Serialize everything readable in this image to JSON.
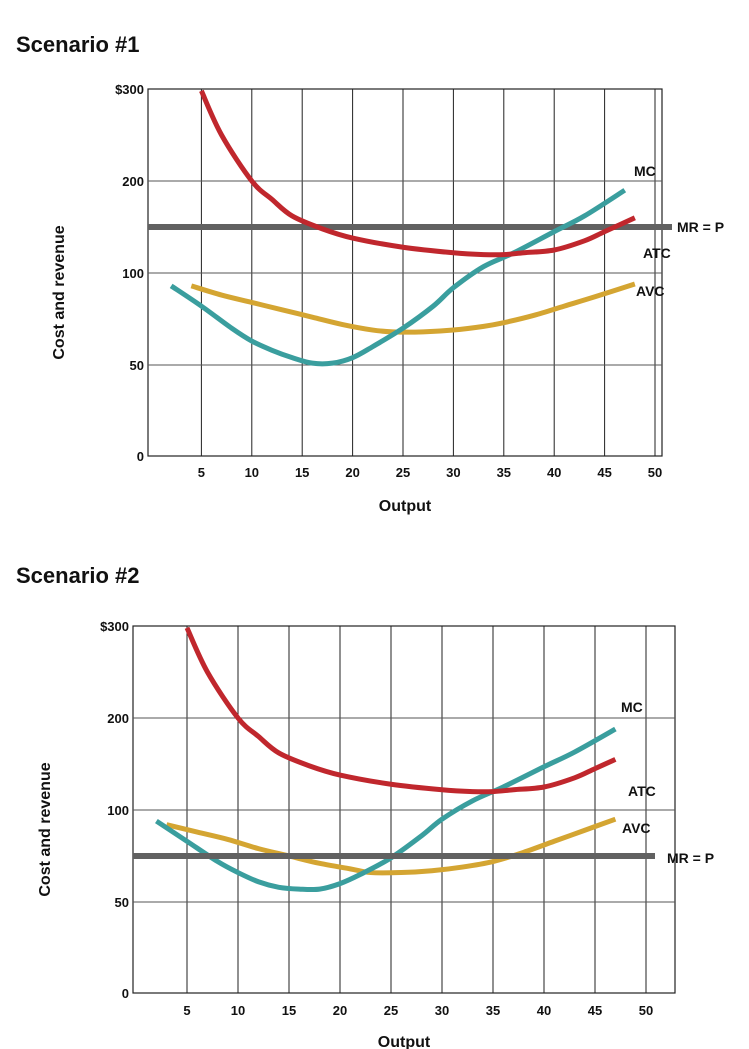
{
  "chart_data": [
    {
      "type": "line",
      "title": "Scenario #1",
      "xlabel": "Output",
      "ylabel": "Cost and revenue",
      "xlim": [
        0,
        52
      ],
      "ylim": [
        0,
        300
      ],
      "x_ticks": [
        5,
        10,
        15,
        20,
        25,
        30,
        35,
        40,
        45,
        50
      ],
      "y_ticks": [
        0,
        50,
        100,
        200,
        300
      ],
      "y_tick_labels": [
        "0",
        "50",
        "100",
        "200",
        "$300"
      ],
      "series": [
        {
          "name": "ATC",
          "color": "#c0272d",
          "x": [
            5,
            7,
            10,
            12,
            14,
            17,
            20,
            25,
            30,
            33,
            35,
            37,
            40,
            43,
            45,
            48
          ],
          "y": [
            298,
            250,
            200,
            180,
            162,
            148,
            138,
            128,
            122,
            120,
            120,
            122,
            125,
            135,
            145,
            160
          ]
        },
        {
          "name": "MC",
          "color": "#3a9e9e",
          "x": [
            2,
            5,
            8,
            10,
            12,
            14,
            16,
            18,
            20,
            22,
            25,
            28,
            30,
            33,
            36,
            40,
            43,
            47
          ],
          "y": [
            93,
            82,
            70,
            63,
            58,
            54,
            51,
            51,
            54,
            60,
            70,
            82,
            92,
            107,
            122,
            145,
            162,
            190
          ]
        },
        {
          "name": "AVC",
          "color": "#d4a532",
          "x": [
            4,
            7,
            10,
            13,
            16,
            19,
            22,
            24,
            27,
            30,
            33,
            35,
            38,
            41,
            44,
            48
          ],
          "y": [
            93,
            88,
            84,
            80,
            76,
            72,
            69,
            68,
            68,
            69,
            71,
            73,
            77,
            82,
            87,
            94
          ]
        }
      ],
      "mr_line": {
        "label": "MR = P",
        "value": 150,
        "color": "#616161"
      }
    },
    {
      "type": "line",
      "title": "Scenario #2",
      "xlabel": "Output",
      "ylabel": "Cost and revenue",
      "xlim": [
        0,
        52
      ],
      "ylim": [
        0,
        300
      ],
      "x_ticks": [
        5,
        10,
        15,
        20,
        25,
        30,
        35,
        40,
        45,
        50
      ],
      "y_ticks": [
        0,
        50,
        100,
        200,
        300
      ],
      "y_tick_labels": [
        "0",
        "50",
        "100",
        "200",
        "$300"
      ],
      "series": [
        {
          "name": "ATC",
          "color": "#c0272d",
          "x": [
            5,
            7,
            10,
            12,
            14,
            17,
            20,
            25,
            30,
            33,
            35,
            37,
            40,
            43,
            45,
            47
          ],
          "y": [
            298,
            250,
            200,
            180,
            162,
            148,
            138,
            128,
            122,
            120,
            120,
            122,
            125,
            135,
            145,
            155
          ]
        },
        {
          "name": "MC",
          "color": "#3a9e9e",
          "x": [
            2,
            5,
            8,
            10,
            12,
            14,
            16,
            18,
            20,
            22,
            25,
            28,
            30,
            33,
            36,
            40,
            43,
            47
          ],
          "y": [
            94,
            83,
            72,
            66,
            61,
            58,
            57,
            57,
            60,
            65,
            74,
            86,
            95,
            110,
            125,
            147,
            163,
            188
          ]
        },
        {
          "name": "AVC",
          "color": "#d4a532",
          "x": [
            3,
            6,
            9,
            12,
            15,
            18,
            21,
            23,
            26,
            29,
            32,
            35,
            38,
            41,
            44,
            47
          ],
          "y": [
            92,
            88,
            84,
            79,
            75,
            71,
            68,
            66,
            66,
            67,
            69,
            72,
            77,
            83,
            89,
            95
          ]
        }
      ],
      "mr_line": {
        "label": "MR = P",
        "value": 75,
        "color": "#616161"
      }
    }
  ]
}
